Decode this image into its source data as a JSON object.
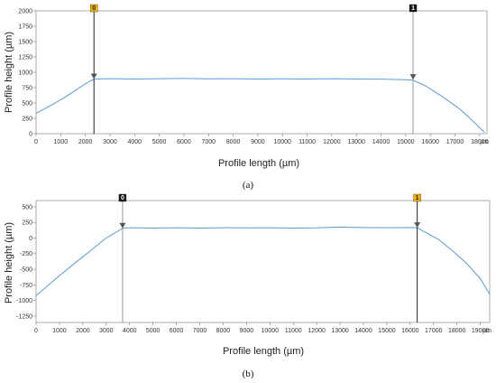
{
  "chart_data": [
    {
      "type": "line",
      "panel_label": "(a)",
      "xlabel": "Profile length (µm)",
      "ylabel": "Profile height (µm)",
      "x_unit": "µm",
      "xlim": [
        0,
        18300
      ],
      "ylim": [
        0,
        2000
      ],
      "x_ticks": [
        0,
        1000,
        2000,
        3000,
        4000,
        5000,
        6000,
        7000,
        8000,
        9000,
        10000,
        11000,
        12000,
        13000,
        14000,
        15000,
        16000,
        17000,
        18000
      ],
      "y_ticks": [
        0,
        250,
        500,
        750,
        1000,
        1250,
        1500,
        1750,
        2000
      ],
      "grid": false,
      "series": [
        {
          "color": "#5b9bd5",
          "points": [
            [
              0,
              330
            ],
            [
              600,
              460
            ],
            [
              1200,
              600
            ],
            [
              1800,
              760
            ],
            [
              2200,
              860
            ],
            [
              2400,
              890
            ],
            [
              3000,
              895
            ],
            [
              4000,
              890
            ],
            [
              5000,
              895
            ],
            [
              6000,
              898
            ],
            [
              7000,
              893
            ],
            [
              8000,
              895
            ],
            [
              9000,
              890
            ],
            [
              10000,
              893
            ],
            [
              11000,
              890
            ],
            [
              12000,
              895
            ],
            [
              13000,
              890
            ],
            [
              14000,
              888
            ],
            [
              15000,
              880
            ],
            [
              15300,
              870
            ],
            [
              15800,
              780
            ],
            [
              16500,
              600
            ],
            [
              17200,
              400
            ],
            [
              17800,
              180
            ],
            [
              18200,
              20
            ]
          ]
        }
      ],
      "markers": [
        {
          "label": "0",
          "x": 2350,
          "y": 890,
          "tag_color": "#f0b400",
          "text_color": "#222222",
          "line_color": "#222222"
        },
        {
          "label": "1",
          "x": 15300,
          "y": 880,
          "tag_color": "#111111",
          "text_color": "#ffffff",
          "line_color": "#999999"
        }
      ]
    },
    {
      "type": "line",
      "panel_label": "(b)",
      "xlabel": "Profile length (µm)",
      "ylabel": "Profile height (µm)",
      "x_unit": "µm",
      "xlim": [
        0,
        19400
      ],
      "ylim": [
        -1350,
        600
      ],
      "x_ticks": [
        0,
        1000,
        2000,
        3000,
        4000,
        5000,
        6000,
        7000,
        8000,
        9000,
        10000,
        11000,
        12000,
        13000,
        14000,
        15000,
        16000,
        17000,
        18000,
        19000
      ],
      "y_ticks": [
        500,
        250,
        0,
        -250,
        -500,
        -750,
        -1000,
        -1250
      ],
      "grid": false,
      "series": [
        {
          "color": "#5b9bd5",
          "points": [
            [
              0,
              -920
            ],
            [
              500,
              -760
            ],
            [
              1000,
              -600
            ],
            [
              1500,
              -450
            ],
            [
              2000,
              -300
            ],
            [
              2500,
              -150
            ],
            [
              3000,
              0
            ],
            [
              3500,
              110
            ],
            [
              3700,
              155
            ],
            [
              4000,
              165
            ],
            [
              5000,
              160
            ],
            [
              6000,
              165
            ],
            [
              7000,
              160
            ],
            [
              8000,
              165
            ],
            [
              9000,
              162
            ],
            [
              10000,
              165
            ],
            [
              11000,
              160
            ],
            [
              12000,
              162
            ],
            [
              13000,
              175
            ],
            [
              14000,
              168
            ],
            [
              15000,
              165
            ],
            [
              16000,
              168
            ],
            [
              16300,
              165
            ],
            [
              16600,
              100
            ],
            [
              17200,
              -20
            ],
            [
              17800,
              -200
            ],
            [
              18400,
              -400
            ],
            [
              19000,
              -650
            ],
            [
              19400,
              -900
            ]
          ]
        }
      ],
      "markers": [
        {
          "label": "0",
          "x": 3700,
          "y": 155,
          "tag_color": "#111111",
          "text_color": "#ffffff",
          "line_color": "#999999"
        },
        {
          "label": "1",
          "x": 16300,
          "y": 165,
          "tag_color": "#f0b400",
          "text_color": "#222222",
          "line_color": "#222222"
        }
      ]
    }
  ]
}
